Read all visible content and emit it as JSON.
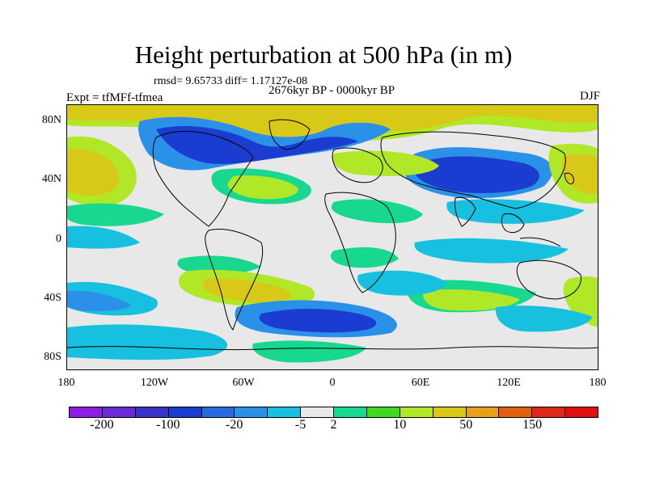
{
  "title": "Height perturbation at 500 hPa (in m)",
  "stats": "rmsd= 9.65733 diff= 1.17127e-08",
  "period": "2676kyr BP - 0000kyr BP",
  "experiment": "Expt = tfMFf-tfmea",
  "season": "DJF",
  "y_axis_labels": [
    "80N",
    "40N",
    "0",
    "40S",
    "80S"
  ],
  "x_axis_labels": [
    "180",
    "120W",
    "60W",
    "0",
    "60E",
    "120E",
    "180"
  ],
  "colorbar": {
    "colors": [
      "#8a1fe0",
      "#6a2ad8",
      "#3a33c8",
      "#1a3cd0",
      "#2a6ae0",
      "#2a90e8",
      "#18c0e0",
      "#e8e8e8",
      "#18d890",
      "#40d820",
      "#b0e828",
      "#d8c818",
      "#e8a018",
      "#e06010",
      "#e02818",
      "#e01010"
    ],
    "labels": [
      "-200",
      "-100",
      "-20",
      "-5",
      "2",
      "10",
      "50",
      "150"
    ]
  }
}
